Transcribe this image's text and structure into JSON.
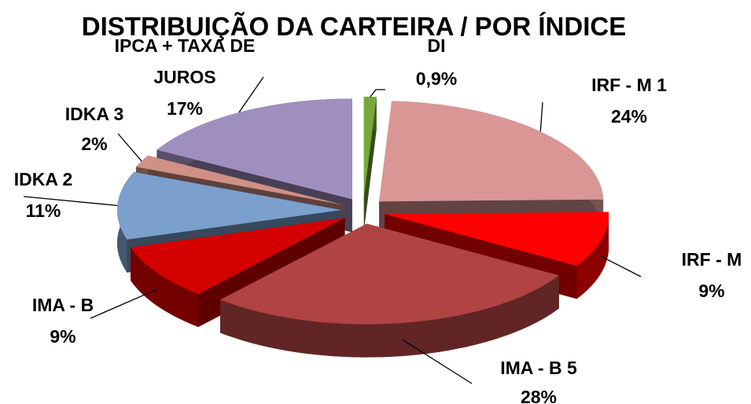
{
  "chart_data": {
    "type": "pie3d",
    "title": "DISTRIBUIÇÃO DA CARTEIRA / POR ÍNDICE",
    "categories": [
      "DI",
      "IRF - M 1",
      "IRF - M",
      "IMA - B 5",
      "IMA - B",
      "IDKA 2",
      "IDKA 3",
      "IPCA + TAXA DE JUROS"
    ],
    "values": [
      0.9,
      24,
      9,
      28,
      9,
      11,
      2,
      17
    ],
    "value_labels": [
      "0,9%",
      "24%",
      "9%",
      "28%",
      "9%",
      "11%",
      "2%",
      "17%"
    ],
    "colors": [
      "#77a83b",
      "#d99694",
      "#ff0000",
      "#b04343",
      "#d40000",
      "#7ba0cd",
      "#d09085",
      "#9f8fbf"
    ]
  }
}
